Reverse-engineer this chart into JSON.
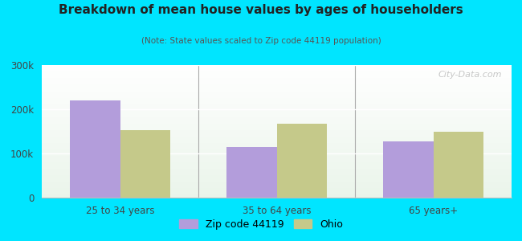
{
  "title": "Breakdown of mean house values by ages of householders",
  "subtitle": "(Note: State values scaled to Zip code 44119 population)",
  "categories": [
    "25 to 34 years",
    "35 to 64 years",
    "65 years+"
  ],
  "zip_values": [
    220000,
    115000,
    128000
  ],
  "ohio_values": [
    152000,
    168000,
    150000
  ],
  "zip_color": "#b39ddb",
  "ohio_color": "#c5c98a",
  "background_outer": "#00e5ff",
  "ylim": [
    0,
    300000
  ],
  "yticks": [
    0,
    100000,
    200000,
    300000
  ],
  "ytick_labels": [
    "0",
    "100k",
    "200k",
    "300k"
  ],
  "legend_labels": [
    "Zip code 44119",
    "Ohio"
  ],
  "watermark": "City-Data.com",
  "bar_width": 0.32
}
